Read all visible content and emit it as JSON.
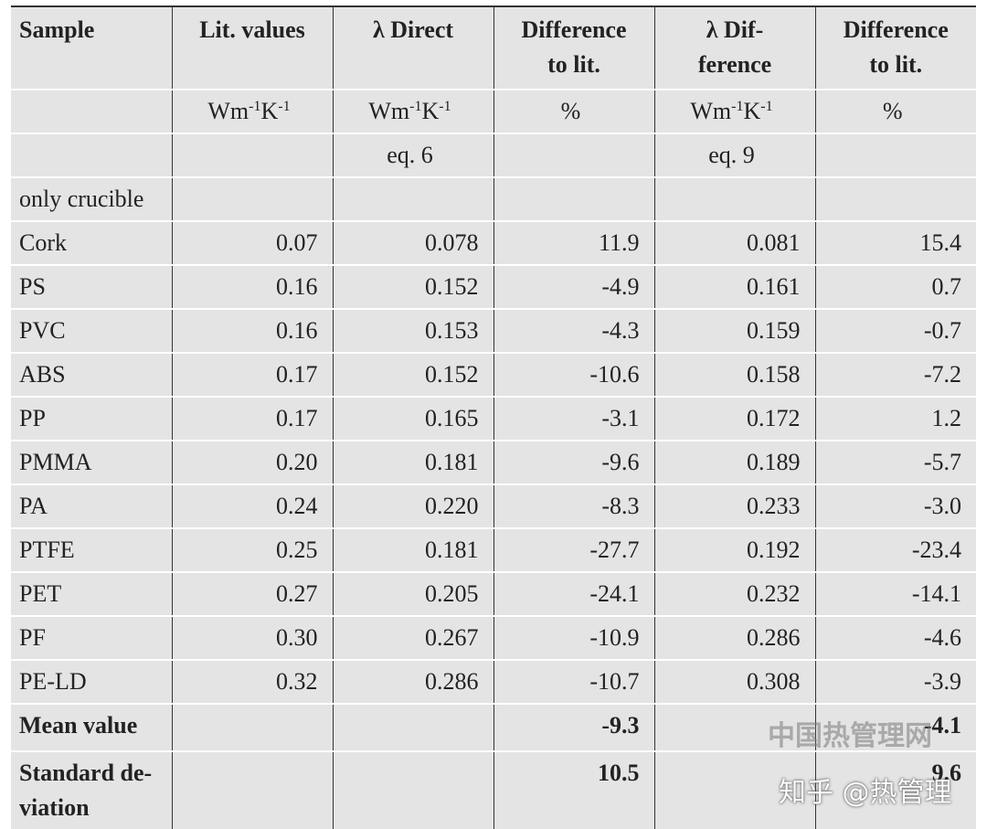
{
  "table": {
    "header": [
      "Sample",
      "Lit. values",
      "λ Direct",
      "Difference\nto lit.",
      "λ Dif-\nference",
      "Difference\nto lit."
    ],
    "subheader": [
      [
        null,
        [
          "Wm",
          "-1",
          "K",
          "-1"
        ],
        [
          "Wm",
          "-1",
          "K",
          "-1"
        ],
        "%",
        [
          "Wm",
          "-1",
          "K",
          "-1"
        ],
        "%"
      ],
      [
        null,
        null,
        "eq. 6",
        null,
        "eq. 9",
        null
      ]
    ],
    "rows": [
      [
        "only crucible",
        null,
        null,
        null,
        null,
        null
      ],
      [
        "Cork",
        "0.07",
        "0.078",
        "11.9",
        "0.081",
        "15.4"
      ],
      [
        "PS",
        "0.16",
        "0.152",
        "-4.9",
        "0.161",
        "0.7"
      ],
      [
        "PVC",
        "0.16",
        "0.153",
        "-4.3",
        "0.159",
        "-0.7"
      ],
      [
        "ABS",
        "0.17",
        "0.152",
        "-10.6",
        "0.158",
        "-7.2"
      ],
      [
        "PP",
        "0.17",
        "0.165",
        "-3.1",
        "0.172",
        "1.2"
      ],
      [
        "PMMA",
        "0.20",
        "0.181",
        "-9.6",
        "0.189",
        "-5.7"
      ],
      [
        "PA",
        "0.24",
        "0.220",
        "-8.3",
        "0.233",
        "-3.0"
      ],
      [
        "PTFE",
        "0.25",
        "0.181",
        "-27.7",
        "0.192",
        "-23.4"
      ],
      [
        "PET",
        "0.27",
        "0.205",
        "-24.1",
        "0.232",
        "-14.1"
      ],
      [
        "PF",
        "0.30",
        "0.267",
        "-10.9",
        "0.286",
        "-4.6"
      ],
      [
        "PE-LD",
        "0.32",
        "0.286",
        "-10.7",
        "0.308",
        "-3.9"
      ]
    ],
    "footer": [
      [
        "Mean value",
        null,
        null,
        "-9.3",
        null,
        "-4.1"
      ],
      [
        "Standard de-\nviation",
        null,
        null,
        "10.5",
        null,
        "9.6"
      ]
    ]
  },
  "watermarks": [
    "中国热管理网",
    "知乎 @热管理"
  ]
}
